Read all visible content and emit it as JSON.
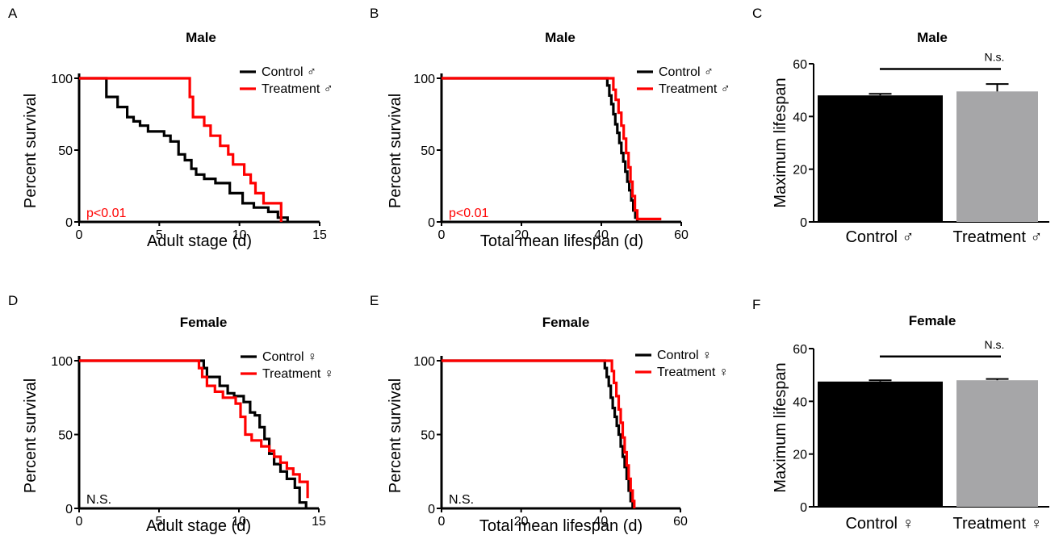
{
  "colors": {
    "control": "#000000",
    "treatment": "#ff0000",
    "bar_control": "#000000",
    "bar_treatment": "#a6a6a8"
  },
  "chart_data": [
    {
      "panel": "A",
      "type": "line",
      "step": true,
      "title": "Male",
      "xlabel": "Adult stage (d)",
      "ylabel": "Percent survival",
      "xlim": [
        0,
        15
      ],
      "ylim": [
        0,
        100
      ],
      "xticks": [
        0,
        5,
        10,
        15
      ],
      "yticks": [
        0,
        50,
        100
      ],
      "annotation": "p<0.01",
      "annotation_color": "#ff0000",
      "series": [
        {
          "name": "Control ♂",
          "color": "#000000",
          "x": [
            0,
            1.7,
            2.4,
            3.0,
            3.4,
            3.8,
            4.3,
            5.3,
            5.7,
            6.2,
            6.6,
            7.0,
            7.3,
            7.8,
            8.5,
            9.4,
            10.2,
            10.9,
            11.8,
            12.4,
            13.0
          ],
          "y": [
            100,
            87,
            80,
            73,
            70,
            67,
            63,
            60,
            56,
            47,
            43,
            37,
            33,
            30,
            27,
            20,
            13,
            10,
            7,
            3,
            0
          ]
        },
        {
          "name": "Treatment ♂",
          "color": "#ff0000",
          "x": [
            0,
            6.9,
            7.1,
            7.8,
            8.2,
            8.8,
            9.3,
            9.6,
            10.3,
            10.7,
            11.0,
            11.5,
            12.6
          ],
          "y": [
            100,
            87,
            73,
            67,
            60,
            53,
            47,
            40,
            33,
            27,
            20,
            13,
            0
          ]
        }
      ]
    },
    {
      "panel": "B",
      "type": "line",
      "step": true,
      "title": "Male",
      "xlabel": "Total mean lifespan (d)",
      "ylabel": "Percent survival",
      "xlim": [
        0,
        60
      ],
      "ylim": [
        0,
        100
      ],
      "xticks": [
        0,
        20,
        40,
        60
      ],
      "yticks": [
        0,
        50,
        100
      ],
      "annotation": "p<0.01",
      "annotation_color": "#ff0000",
      "series": [
        {
          "name": "Control ♂",
          "color": "#000000",
          "x": [
            0,
            41.5,
            42.0,
            42.5,
            43.0,
            43.5,
            44.0,
            44.5,
            45.0,
            45.5,
            46.0,
            46.5,
            47.0,
            47.5,
            48.0,
            48.5,
            49.0
          ],
          "y": [
            100,
            95,
            88,
            82,
            75,
            68,
            62,
            55,
            48,
            42,
            35,
            28,
            22,
            15,
            8,
            3,
            0
          ]
        },
        {
          "name": "Treatment ♂",
          "color": "#ff0000",
          "x": [
            0,
            43.0,
            43.6,
            44.3,
            45.0,
            45.6,
            46.2,
            46.8,
            47.3,
            47.8,
            48.4,
            49.0,
            55.0
          ],
          "y": [
            100,
            92,
            85,
            76,
            67,
            58,
            48,
            38,
            28,
            18,
            8,
            2,
            2
          ]
        }
      ]
    },
    {
      "panel": "C",
      "type": "bar",
      "title": "Male",
      "ylabel": "Maximum lifespan",
      "categories": [
        "Control ♂",
        "Treatment ♂"
      ],
      "values": [
        48,
        49.5
      ],
      "errors": [
        0.6,
        2.8
      ],
      "ylim": [
        0,
        60
      ],
      "yticks": [
        0,
        20,
        40,
        60
      ],
      "annotation": "N.s.",
      "significance_line_y": 58
    },
    {
      "panel": "D",
      "type": "line",
      "step": true,
      "title": "Female",
      "xlabel": "Adult stage (d)",
      "ylabel": "Percent survival",
      "xlim": [
        0,
        15
      ],
      "ylim": [
        0,
        100
      ],
      "xticks": [
        0,
        5,
        10,
        15
      ],
      "yticks": [
        0,
        50,
        100
      ],
      "annotation": "N.S.",
      "annotation_color": "#000000",
      "series": [
        {
          "name": "Control ♀",
          "color": "#000000",
          "x": [
            0,
            7.8,
            8.0,
            8.8,
            9.3,
            9.7,
            10.3,
            10.7,
            11.0,
            11.3,
            11.6,
            11.9,
            12.2,
            12.6,
            13.0,
            13.5,
            13.8,
            14.2
          ],
          "y": [
            100,
            95,
            89,
            83,
            78,
            76,
            72,
            65,
            63,
            55,
            47,
            37,
            30,
            25,
            20,
            14,
            4,
            0
          ]
        },
        {
          "name": "Treatment ♀",
          "color": "#ff0000",
          "x": [
            0,
            7.5,
            7.7,
            8.0,
            8.5,
            9.0,
            9.8,
            10.1,
            10.4,
            10.8,
            11.4,
            11.9,
            12.2,
            12.6,
            13.0,
            13.4,
            13.8,
            14.3
          ],
          "y": [
            100,
            95,
            89,
            83,
            79,
            75,
            71,
            62,
            50,
            46,
            42,
            39,
            35,
            31,
            27,
            23,
            18,
            7
          ]
        }
      ]
    },
    {
      "panel": "E",
      "type": "line",
      "step": true,
      "title": "Female",
      "xlabel": "Total mean lifespan (d)",
      "ylabel": "Percent survival",
      "xlim": [
        0,
        60
      ],
      "ylim": [
        0,
        100
      ],
      "xticks": [
        0,
        20,
        40,
        60
      ],
      "yticks": [
        0,
        50,
        100
      ],
      "annotation": "N.S.",
      "annotation_color": "#000000",
      "series": [
        {
          "name": "Control ♀",
          "color": "#000000",
          "x": [
            0,
            41.0,
            41.5,
            42.0,
            42.5,
            43.0,
            43.5,
            44.0,
            44.5,
            45.0,
            45.5,
            46.0,
            46.5,
            47.0,
            47.5,
            48.0
          ],
          "y": [
            100,
            95,
            89,
            83,
            75,
            68,
            62,
            56,
            50,
            42,
            35,
            28,
            20,
            12,
            5,
            0
          ]
        },
        {
          "name": "Treatment ♀",
          "color": "#ff0000",
          "x": [
            0,
            42.8,
            43.3,
            43.9,
            44.5,
            45.0,
            45.5,
            46.0,
            46.5,
            47.0,
            47.5,
            48.0,
            48.4
          ],
          "y": [
            100,
            93,
            85,
            76,
            67,
            58,
            48,
            38,
            29,
            20,
            12,
            5,
            0
          ]
        }
      ]
    },
    {
      "panel": "F",
      "type": "bar",
      "title": "Female",
      "ylabel": "Maximum lifespan",
      "categories": [
        "Control ♀",
        "Treatment ♀"
      ],
      "values": [
        47.5,
        48
      ],
      "errors": [
        0.5,
        0.5
      ],
      "ylim": [
        0,
        60
      ],
      "yticks": [
        0,
        20,
        40,
        60
      ],
      "annotation": "N.s.",
      "significance_line_y": 57
    }
  ]
}
